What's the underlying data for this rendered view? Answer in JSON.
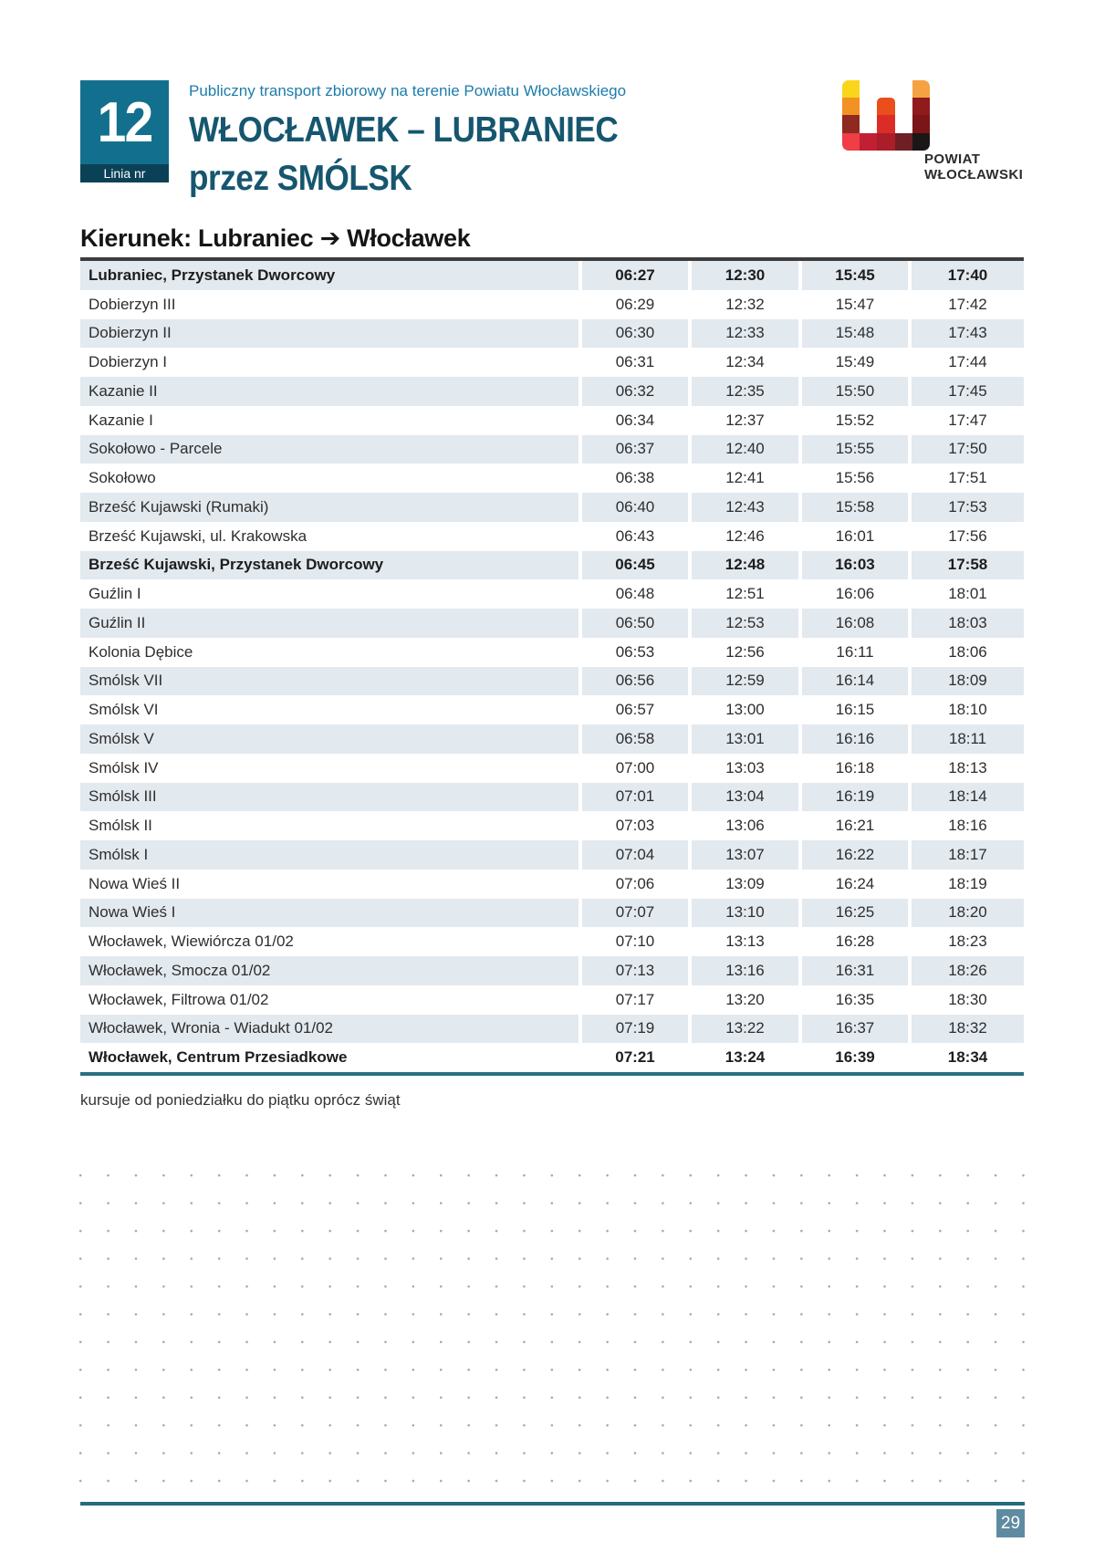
{
  "header": {
    "line_label": "Linia nr",
    "line_number": "12",
    "subtitle": "Publiczny transport zbiorowy na terenie Powiatu Włocławskiego",
    "title_line1": "WŁOCŁAWEK – LUBRANIEC",
    "title_line2": "przez SMÓLSK"
  },
  "logo": {
    "text_line1": "POWIAT",
    "text_line2": "WŁOCŁAWSKI",
    "blocks": [
      {
        "col": 0,
        "row": 0,
        "color": "#F9D61A",
        "corner": "tl"
      },
      {
        "col": 0,
        "row": 1,
        "color": "#F29222"
      },
      {
        "col": 0,
        "row": 2,
        "color": "#8E2A1F"
      },
      {
        "col": 0,
        "row": 3,
        "color": "#EF3E46",
        "corner": "bl"
      },
      {
        "col": 1,
        "row": 3,
        "color": "#C21F33"
      },
      {
        "col": 2,
        "row": 1,
        "color": "#E94E1B",
        "corner": "top"
      },
      {
        "col": 2,
        "row": 2,
        "color": "#DB2C28"
      },
      {
        "col": 2,
        "row": 3,
        "color": "#AA1E29"
      },
      {
        "col": 3,
        "row": 3,
        "color": "#6E1F24"
      },
      {
        "col": 4,
        "row": 0,
        "color": "#F5A243",
        "corner": "tr"
      },
      {
        "col": 4,
        "row": 1,
        "color": "#901A1C"
      },
      {
        "col": 4,
        "row": 2,
        "color": "#7B1518"
      },
      {
        "col": 4,
        "row": 3,
        "color": "#1B1717",
        "corner": "br"
      }
    ]
  },
  "direction_heading": "Kierunek: Lubraniec ➔ Włocławek",
  "timetable": {
    "rows": [
      {
        "stop": "Lubraniec, Przystanek Dworcowy",
        "times": [
          "06:27",
          "12:30",
          "15:45",
          "17:40"
        ],
        "bold": true
      },
      {
        "stop": "Dobierzyn III",
        "times": [
          "06:29",
          "12:32",
          "15:47",
          "17:42"
        ],
        "bold": false
      },
      {
        "stop": "Dobierzyn II",
        "times": [
          "06:30",
          "12:33",
          "15:48",
          "17:43"
        ],
        "bold": false
      },
      {
        "stop": "Dobierzyn I",
        "times": [
          "06:31",
          "12:34",
          "15:49",
          "17:44"
        ],
        "bold": false
      },
      {
        "stop": "Kazanie II",
        "times": [
          "06:32",
          "12:35",
          "15:50",
          "17:45"
        ],
        "bold": false
      },
      {
        "stop": "Kazanie I",
        "times": [
          "06:34",
          "12:37",
          "15:52",
          "17:47"
        ],
        "bold": false
      },
      {
        "stop": "Sokołowo - Parcele",
        "times": [
          "06:37",
          "12:40",
          "15:55",
          "17:50"
        ],
        "bold": false
      },
      {
        "stop": "Sokołowo",
        "times": [
          "06:38",
          "12:41",
          "15:56",
          "17:51"
        ],
        "bold": false
      },
      {
        "stop": "Brześć Kujawski (Rumaki)",
        "times": [
          "06:40",
          "12:43",
          "15:58",
          "17:53"
        ],
        "bold": false
      },
      {
        "stop": "Brześć Kujawski, ul. Krakowska",
        "times": [
          "06:43",
          "12:46",
          "16:01",
          "17:56"
        ],
        "bold": false
      },
      {
        "stop": "Brześć Kujawski, Przystanek Dworcowy",
        "times": [
          "06:45",
          "12:48",
          "16:03",
          "17:58"
        ],
        "bold": true
      },
      {
        "stop": "Guźlin I",
        "times": [
          "06:48",
          "12:51",
          "16:06",
          "18:01"
        ],
        "bold": false
      },
      {
        "stop": "Guźlin II",
        "times": [
          "06:50",
          "12:53",
          "16:08",
          "18:03"
        ],
        "bold": false
      },
      {
        "stop": "Kolonia Dębice",
        "times": [
          "06:53",
          "12:56",
          "16:11",
          "18:06"
        ],
        "bold": false
      },
      {
        "stop": "Smólsk VII",
        "times": [
          "06:56",
          "12:59",
          "16:14",
          "18:09"
        ],
        "bold": false
      },
      {
        "stop": "Smólsk VI",
        "times": [
          "06:57",
          "13:00",
          "16:15",
          "18:10"
        ],
        "bold": false
      },
      {
        "stop": "Smólsk V",
        "times": [
          "06:58",
          "13:01",
          "16:16",
          "18:11"
        ],
        "bold": false
      },
      {
        "stop": "Smólsk IV",
        "times": [
          "07:00",
          "13:03",
          "16:18",
          "18:13"
        ],
        "bold": false
      },
      {
        "stop": "Smólsk III",
        "times": [
          "07:01",
          "13:04",
          "16:19",
          "18:14"
        ],
        "bold": false
      },
      {
        "stop": "Smólsk II",
        "times": [
          "07:03",
          "13:06",
          "16:21",
          "18:16"
        ],
        "bold": false
      },
      {
        "stop": "Smólsk I",
        "times": [
          "07:04",
          "13:07",
          "16:22",
          "18:17"
        ],
        "bold": false
      },
      {
        "stop": "Nowa Wieś II",
        "times": [
          "07:06",
          "13:09",
          "16:24",
          "18:19"
        ],
        "bold": false
      },
      {
        "stop": "Nowa Wieś I",
        "times": [
          "07:07",
          "13:10",
          "16:25",
          "18:20"
        ],
        "bold": false
      },
      {
        "stop": "Włocławek, Wiewiórcza 01/02",
        "times": [
          "07:10",
          "13:13",
          "16:28",
          "18:23"
        ],
        "bold": false
      },
      {
        "stop": "Włocławek, Smocza 01/02",
        "times": [
          "07:13",
          "13:16",
          "16:31",
          "18:26"
        ],
        "bold": false
      },
      {
        "stop": "Włocławek, Filtrowa 01/02",
        "times": [
          "07:17",
          "13:20",
          "16:35",
          "18:30"
        ],
        "bold": false
      },
      {
        "stop": "Włocławek, Wronia - Wiadukt 01/02",
        "times": [
          "07:19",
          "13:22",
          "16:37",
          "18:32"
        ],
        "bold": false
      },
      {
        "stop": "Włocławek, Centrum Przesiadkowe",
        "times": [
          "07:21",
          "13:24",
          "16:39",
          "18:34"
        ],
        "bold": true
      }
    ]
  },
  "footnote": "kursuje od poniedziałku do piątku oprócz świąt",
  "page_number": "29",
  "colors": {
    "teal": "#12708E",
    "band": "#0B4156",
    "subtitle": "#1D7CAB",
    "title": "#16566F",
    "shade": "#E2E9EF",
    "topline": "#3D3D3D",
    "tealline": "#2A7080",
    "footline": "#266B7D",
    "pagebadge": "#5E8BA1",
    "ink": "#2B2B2B",
    "dot": "#A8A8A8"
  }
}
